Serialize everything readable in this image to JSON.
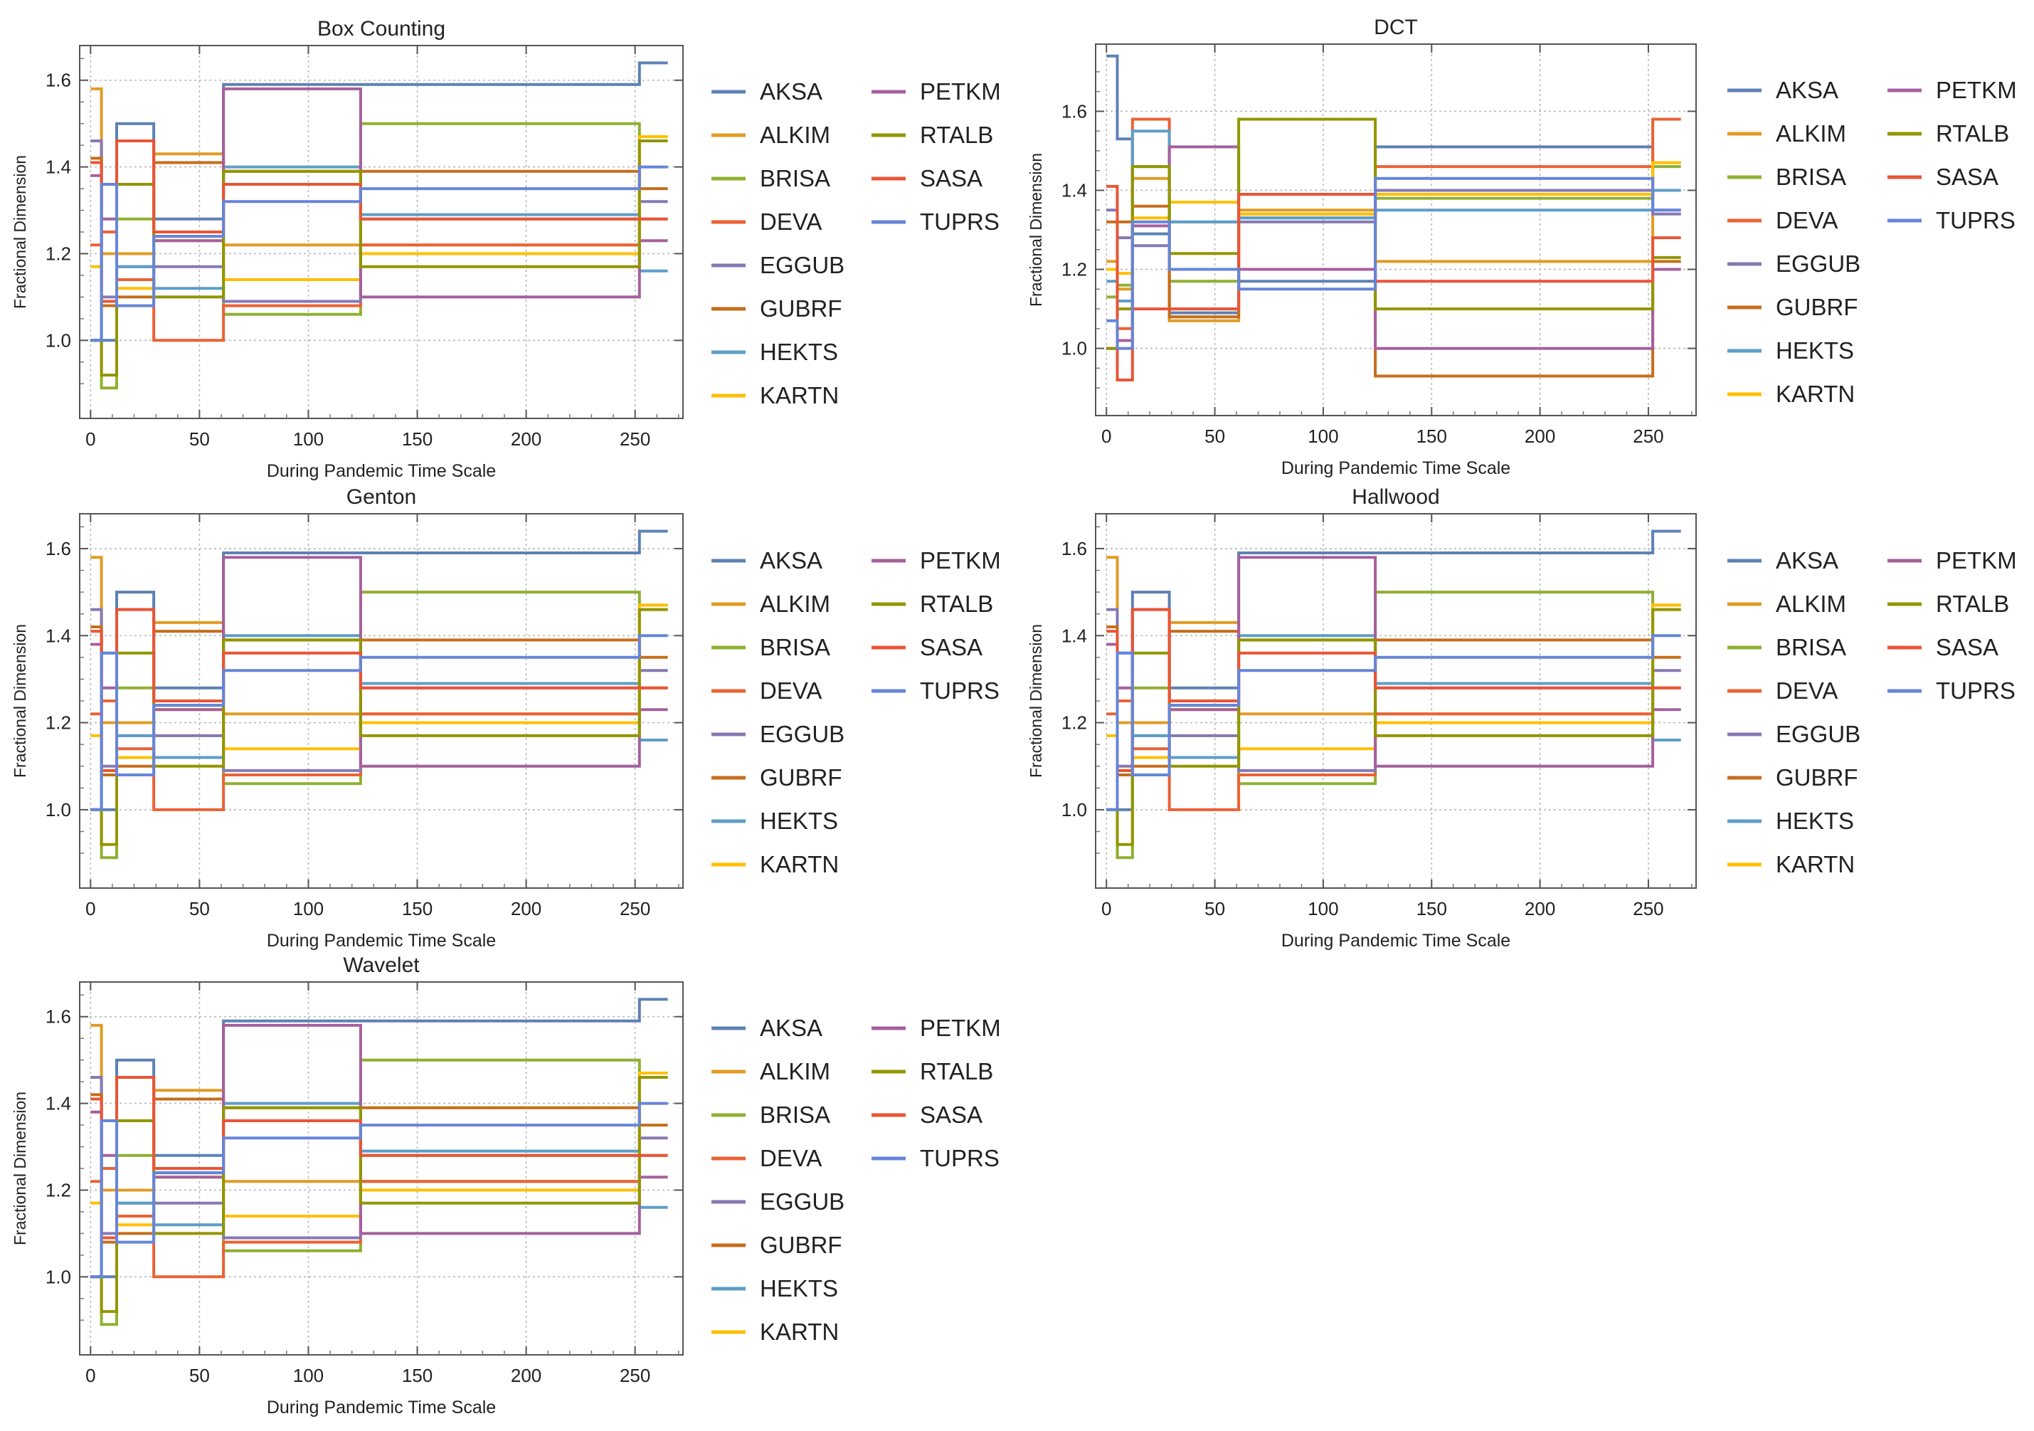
{
  "figure": {
    "background": "#ffffff"
  },
  "series_names": [
    "AKSA",
    "ALKIM",
    "BRISA",
    "DEVA",
    "EGGUB",
    "GUBRF",
    "HEKTS",
    "KARTN",
    "PETKM",
    "RTALB",
    "SASA",
    "TUPRS"
  ],
  "series_colors": [
    "#5E81B5",
    "#E19C24",
    "#8FB032",
    "#EB6235",
    "#8778B3",
    "#C56E1A",
    "#5D9EC7",
    "#FFBF00",
    "#A5609D",
    "#929600",
    "#E95536",
    "#6685D9"
  ],
  "chart_data": [
    {
      "type": "line",
      "step": true,
      "title": "Box Counting",
      "xlabel": "During Pandemic Time Scale",
      "ylabel": "Fractional Dimension",
      "xlim": [
        -5,
        272
      ],
      "ylim": [
        0.82,
        1.68
      ],
      "xticks": [
        0,
        50,
        100,
        150,
        200,
        250
      ],
      "yticks": [
        1.0,
        1.2,
        1.4,
        1.6
      ],
      "x_breaks": [
        0,
        5,
        12,
        20,
        29,
        61,
        124,
        252,
        265
      ],
      "legend": [
        "AKSA",
        "ALKIM",
        "BRISA",
        "DEVA",
        "EGGUB",
        "GUBRF",
        "HEKTS",
        "KARTN",
        "PETKM",
        "RTALB",
        "SASA",
        "TUPRS"
      ],
      "series": [
        {
          "name": "AKSA",
          "values": [
            1.0,
            1.0,
            1.5,
            1.5,
            1.28,
            1.59,
            1.59,
            1.64
          ]
        },
        {
          "name": "ALKIM",
          "values": [
            1.58,
            1.2,
            1.2,
            1.2,
            1.43,
            1.22,
            1.22,
            1.46
          ]
        },
        {
          "name": "BRISA",
          "values": [
            1.0,
            0.89,
            1.28,
            1.28,
            1.24,
            1.06,
            1.5,
            1.47
          ]
        },
        {
          "name": "DEVA",
          "values": [
            1.22,
            1.25,
            1.14,
            1.14,
            1.0,
            1.08,
            1.22,
            1.28
          ]
        },
        {
          "name": "EGGUB",
          "values": [
            1.46,
            1.1,
            1.17,
            1.17,
            1.17,
            1.09,
            1.28,
            1.32
          ]
        },
        {
          "name": "GUBRF",
          "values": [
            1.42,
            1.08,
            1.1,
            1.1,
            1.41,
            1.39,
            1.39,
            1.35
          ]
        },
        {
          "name": "HEKTS",
          "values": [
            1.0,
            1.36,
            1.17,
            1.17,
            1.12,
            1.4,
            1.29,
            1.16
          ]
        },
        {
          "name": "KARTN",
          "values": [
            1.17,
            1.09,
            1.12,
            1.12,
            1.23,
            1.14,
            1.2,
            1.47
          ]
        },
        {
          "name": "PETKM",
          "values": [
            1.38,
            1.28,
            1.46,
            1.46,
            1.23,
            1.58,
            1.1,
            1.23
          ]
        },
        {
          "name": "RTALB",
          "values": [
            1.0,
            0.92,
            1.36,
            1.36,
            1.1,
            1.39,
            1.17,
            1.46
          ]
        },
        {
          "name": "SASA",
          "values": [
            1.41,
            1.09,
            1.46,
            1.46,
            1.25,
            1.36,
            1.28,
            1.28
          ]
        },
        {
          "name": "TUPRS",
          "values": [
            1.0,
            1.36,
            1.08,
            1.08,
            1.24,
            1.32,
            1.35,
            1.4
          ]
        }
      ]
    },
    {
      "type": "line",
      "step": true,
      "title": "DCT",
      "xlabel": "During Pandemic Time Scale",
      "ylabel": "Fractional Dimension",
      "xlim": [
        -5,
        272
      ],
      "ylim": [
        0.83,
        1.77
      ],
      "xticks": [
        0,
        50,
        100,
        150,
        200,
        250
      ],
      "yticks": [
        1.0,
        1.2,
        1.4,
        1.6
      ],
      "x_breaks": [
        0,
        5,
        12,
        20,
        29,
        61,
        124,
        252,
        265
      ],
      "legend": [
        "AKSA",
        "ALKIM",
        "BRISA",
        "DEVA",
        "EGGUB",
        "GUBRF",
        "HEKTS",
        "KARTN",
        "PETKM",
        "RTALB",
        "SASA",
        "TUPRS"
      ],
      "series": [
        {
          "name": "AKSA",
          "values": [
            1.74,
            1.53,
            1.29,
            1.29,
            1.09,
            1.17,
            1.51,
            1.35
          ]
        },
        {
          "name": "ALKIM",
          "values": [
            1.22,
            1.15,
            1.43,
            1.43,
            1.07,
            1.35,
            1.22,
            1.47
          ]
        },
        {
          "name": "BRISA",
          "values": [
            1.13,
            1.16,
            1.46,
            1.46,
            1.17,
            1.33,
            1.38,
            1.46
          ]
        },
        {
          "name": "DEVA",
          "values": [
            1.0,
            1.05,
            1.58,
            1.58,
            1.1,
            1.39,
            1.46,
            1.58
          ]
        },
        {
          "name": "EGGUB",
          "values": [
            1.35,
            1.28,
            1.26,
            1.26,
            1.32,
            1.32,
            1.4,
            1.34
          ]
        },
        {
          "name": "GUBRF",
          "values": [
            1.32,
            1.32,
            1.36,
            1.36,
            1.08,
            1.34,
            0.93,
            1.22
          ]
        },
        {
          "name": "HEKTS",
          "values": [
            1.17,
            1.12,
            1.55,
            1.55,
            1.32,
            1.33,
            1.35,
            1.4
          ]
        },
        {
          "name": "KARTN",
          "values": [
            1.2,
            1.19,
            1.33,
            1.33,
            1.37,
            1.34,
            1.39,
            1.47
          ]
        },
        {
          "name": "PETKM",
          "values": [
            1.0,
            1.02,
            1.31,
            1.31,
            1.51,
            1.2,
            1.0,
            1.2
          ]
        },
        {
          "name": "RTALB",
          "values": [
            1.0,
            1.1,
            1.46,
            1.46,
            1.24,
            1.58,
            1.1,
            1.23
          ]
        },
        {
          "name": "SASA",
          "values": [
            1.41,
            0.92,
            1.1,
            1.1,
            1.1,
            1.39,
            1.17,
            1.28
          ]
        },
        {
          "name": "TUPRS",
          "values": [
            1.07,
            1.0,
            1.32,
            1.32,
            1.2,
            1.15,
            1.43,
            1.35
          ]
        }
      ]
    },
    {
      "type": "line",
      "step": true,
      "title": "Genton",
      "xlabel": "During Pandemic Time Scale",
      "ylabel": "Fractional Dimension",
      "xlim": [
        -5,
        272
      ],
      "ylim": [
        0.82,
        1.68
      ],
      "xticks": [
        0,
        50,
        100,
        150,
        200,
        250
      ],
      "yticks": [
        1.0,
        1.2,
        1.4,
        1.6
      ],
      "x_breaks": [
        0,
        5,
        12,
        20,
        29,
        61,
        124,
        252,
        265
      ],
      "legend": [
        "AKSA",
        "ALKIM",
        "BRISA",
        "DEVA",
        "EGGUB",
        "GUBRF",
        "HEKTS",
        "KARTN",
        "PETKM",
        "RTALB",
        "SASA",
        "TUPRS"
      ],
      "series": [
        {
          "name": "AKSA",
          "values": [
            1.0,
            1.0,
            1.5,
            1.5,
            1.28,
            1.59,
            1.59,
            1.64
          ]
        },
        {
          "name": "ALKIM",
          "values": [
            1.58,
            1.2,
            1.2,
            1.2,
            1.43,
            1.22,
            1.22,
            1.46
          ]
        },
        {
          "name": "BRISA",
          "values": [
            1.0,
            0.89,
            1.28,
            1.28,
            1.24,
            1.06,
            1.5,
            1.47
          ]
        },
        {
          "name": "DEVA",
          "values": [
            1.22,
            1.25,
            1.14,
            1.14,
            1.0,
            1.08,
            1.22,
            1.28
          ]
        },
        {
          "name": "EGGUB",
          "values": [
            1.46,
            1.1,
            1.17,
            1.17,
            1.17,
            1.09,
            1.28,
            1.32
          ]
        },
        {
          "name": "GUBRF",
          "values": [
            1.42,
            1.08,
            1.1,
            1.1,
            1.41,
            1.39,
            1.39,
            1.35
          ]
        },
        {
          "name": "HEKTS",
          "values": [
            1.0,
            1.36,
            1.17,
            1.17,
            1.12,
            1.4,
            1.29,
            1.16
          ]
        },
        {
          "name": "KARTN",
          "values": [
            1.17,
            1.09,
            1.12,
            1.12,
            1.23,
            1.14,
            1.2,
            1.47
          ]
        },
        {
          "name": "PETKM",
          "values": [
            1.38,
            1.28,
            1.46,
            1.46,
            1.23,
            1.58,
            1.1,
            1.23
          ]
        },
        {
          "name": "RTALB",
          "values": [
            1.0,
            0.92,
            1.36,
            1.36,
            1.1,
            1.39,
            1.17,
            1.46
          ]
        },
        {
          "name": "SASA",
          "values": [
            1.41,
            1.09,
            1.46,
            1.46,
            1.25,
            1.36,
            1.28,
            1.28
          ]
        },
        {
          "name": "TUPRS",
          "values": [
            1.0,
            1.36,
            1.08,
            1.08,
            1.24,
            1.32,
            1.35,
            1.4
          ]
        }
      ]
    },
    {
      "type": "line",
      "step": true,
      "title": "Hallwood",
      "xlabel": "During Pandemic Time Scale",
      "ylabel": "Fractional Dimension",
      "xlim": [
        -5,
        272
      ],
      "ylim": [
        0.82,
        1.68
      ],
      "xticks": [
        0,
        50,
        100,
        150,
        200,
        250
      ],
      "yticks": [
        1.0,
        1.2,
        1.4,
        1.6
      ],
      "x_breaks": [
        0,
        5,
        12,
        20,
        29,
        61,
        124,
        252,
        265
      ],
      "legend": [
        "AKSA",
        "ALKIM",
        "BRISA",
        "DEVA",
        "EGGUB",
        "GUBRF",
        "HEKTS",
        "KARTN",
        "PETKM",
        "RTALB",
        "SASA",
        "TUPRS"
      ],
      "series": [
        {
          "name": "AKSA",
          "values": [
            1.0,
            1.0,
            1.5,
            1.5,
            1.28,
            1.59,
            1.59,
            1.64
          ]
        },
        {
          "name": "ALKIM",
          "values": [
            1.58,
            1.2,
            1.2,
            1.2,
            1.43,
            1.22,
            1.22,
            1.46
          ]
        },
        {
          "name": "BRISA",
          "values": [
            1.0,
            0.89,
            1.28,
            1.28,
            1.24,
            1.06,
            1.5,
            1.47
          ]
        },
        {
          "name": "DEVA",
          "values": [
            1.22,
            1.25,
            1.14,
            1.14,
            1.0,
            1.08,
            1.22,
            1.28
          ]
        },
        {
          "name": "EGGUB",
          "values": [
            1.46,
            1.1,
            1.17,
            1.17,
            1.17,
            1.09,
            1.28,
            1.32
          ]
        },
        {
          "name": "GUBRF",
          "values": [
            1.42,
            1.08,
            1.1,
            1.1,
            1.41,
            1.39,
            1.39,
            1.35
          ]
        },
        {
          "name": "HEKTS",
          "values": [
            1.0,
            1.36,
            1.17,
            1.17,
            1.12,
            1.4,
            1.29,
            1.16
          ]
        },
        {
          "name": "KARTN",
          "values": [
            1.17,
            1.09,
            1.12,
            1.12,
            1.23,
            1.14,
            1.2,
            1.47
          ]
        },
        {
          "name": "PETKM",
          "values": [
            1.38,
            1.28,
            1.46,
            1.46,
            1.23,
            1.58,
            1.1,
            1.23
          ]
        },
        {
          "name": "RTALB",
          "values": [
            1.0,
            0.92,
            1.36,
            1.36,
            1.1,
            1.39,
            1.17,
            1.46
          ]
        },
        {
          "name": "SASA",
          "values": [
            1.41,
            1.09,
            1.46,
            1.46,
            1.25,
            1.36,
            1.28,
            1.28
          ]
        },
        {
          "name": "TUPRS",
          "values": [
            1.0,
            1.36,
            1.08,
            1.08,
            1.24,
            1.32,
            1.35,
            1.4
          ]
        }
      ]
    },
    {
      "type": "line",
      "step": true,
      "title": "Wavelet",
      "xlabel": "During Pandemic Time Scale",
      "ylabel": "Fractional Dimension",
      "xlim": [
        -5,
        272
      ],
      "ylim": [
        0.82,
        1.68
      ],
      "xticks": [
        0,
        50,
        100,
        150,
        200,
        250
      ],
      "yticks": [
        1.0,
        1.2,
        1.4,
        1.6
      ],
      "x_breaks": [
        0,
        5,
        12,
        20,
        29,
        61,
        124,
        252,
        265
      ],
      "legend": [
        "AKSA",
        "ALKIM",
        "BRISA",
        "DEVA",
        "EGGUB",
        "GUBRF",
        "HEKTS",
        "KARTN",
        "PETKM",
        "RTALB",
        "SASA",
        "TUPRS"
      ],
      "series": [
        {
          "name": "AKSA",
          "values": [
            1.0,
            1.0,
            1.5,
            1.5,
            1.28,
            1.59,
            1.59,
            1.64
          ]
        },
        {
          "name": "ALKIM",
          "values": [
            1.58,
            1.2,
            1.2,
            1.2,
            1.43,
            1.22,
            1.22,
            1.46
          ]
        },
        {
          "name": "BRISA",
          "values": [
            1.0,
            0.89,
            1.28,
            1.28,
            1.24,
            1.06,
            1.5,
            1.47
          ]
        },
        {
          "name": "DEVA",
          "values": [
            1.22,
            1.25,
            1.14,
            1.14,
            1.0,
            1.08,
            1.22,
            1.28
          ]
        },
        {
          "name": "EGGUB",
          "values": [
            1.46,
            1.1,
            1.17,
            1.17,
            1.17,
            1.09,
            1.28,
            1.32
          ]
        },
        {
          "name": "GUBRF",
          "values": [
            1.42,
            1.08,
            1.1,
            1.1,
            1.41,
            1.39,
            1.39,
            1.35
          ]
        },
        {
          "name": "HEKTS",
          "values": [
            1.0,
            1.36,
            1.17,
            1.17,
            1.12,
            1.4,
            1.29,
            1.16
          ]
        },
        {
          "name": "KARTN",
          "values": [
            1.17,
            1.09,
            1.12,
            1.12,
            1.23,
            1.14,
            1.2,
            1.47
          ]
        },
        {
          "name": "PETKM",
          "values": [
            1.38,
            1.28,
            1.46,
            1.46,
            1.23,
            1.58,
            1.1,
            1.23
          ]
        },
        {
          "name": "RTALB",
          "values": [
            1.0,
            0.92,
            1.36,
            1.36,
            1.1,
            1.39,
            1.17,
            1.46
          ]
        },
        {
          "name": "SASA",
          "values": [
            1.41,
            1.09,
            1.46,
            1.46,
            1.25,
            1.36,
            1.28,
            1.28
          ]
        },
        {
          "name": "TUPRS",
          "values": [
            1.0,
            1.36,
            1.08,
            1.08,
            1.24,
            1.32,
            1.35,
            1.4
          ]
        }
      ]
    }
  ]
}
